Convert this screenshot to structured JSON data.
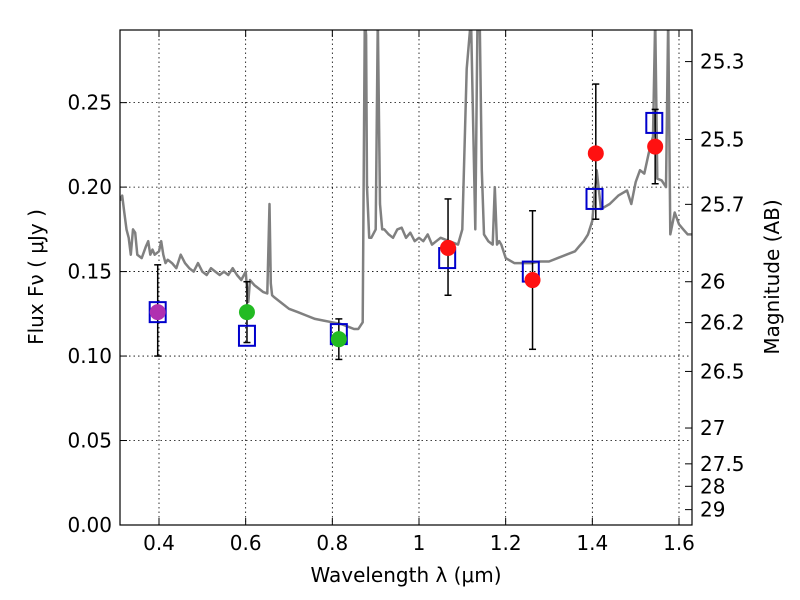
{
  "chart_data": {
    "type": "scatter",
    "title": "",
    "xlabel": "Wavelength  λ (μm)",
    "ylabel": "Flux  Fν  ( μJy )",
    "y2label": "Magnitude (AB)",
    "xlim": [
      0.31,
      1.63
    ],
    "ylim": [
      0.0,
      0.293
    ],
    "grid": true,
    "x_ticks": [
      0.4,
      0.6,
      0.8,
      1.0,
      1.2,
      1.4,
      1.6
    ],
    "x_tick_labels": [
      "0.4",
      "0.6",
      "0.8",
      "1",
      "1.2",
      "1.4",
      "1.6"
    ],
    "y_ticks": [
      0.0,
      0.05,
      0.1,
      0.15,
      0.2,
      0.25
    ],
    "y_tick_labels": [
      "0.00",
      "0.05",
      "0.10",
      "0.15",
      "0.20",
      "0.25"
    ],
    "y2_ticks": [
      {
        "label": "25.3",
        "flux": 0.2743
      },
      {
        "label": "25.5",
        "flux": 0.2282
      },
      {
        "label": "25.7",
        "flux": 0.1898
      },
      {
        "label": "26",
        "flux": 0.144
      },
      {
        "label": "26.2",
        "flux": 0.1198
      },
      {
        "label": "26.5",
        "flux": 0.0909
      },
      {
        "label": "27",
        "flux": 0.0574
      },
      {
        "label": "27.5",
        "flux": 0.0362
      },
      {
        "label": "28",
        "flux": 0.0229
      },
      {
        "label": "29",
        "flux": 0.0091
      }
    ],
    "observed_points": [
      {
        "x": 0.397,
        "y": 0.126,
        "yerr_low": 0.1,
        "yerr_high": 0.154,
        "color": "#b030b0"
      },
      {
        "x": 0.603,
        "y": 0.126,
        "yerr_low": 0.108,
        "yerr_high": 0.144,
        "color": "#22bb22"
      },
      {
        "x": 0.815,
        "y": 0.11,
        "yerr_low": 0.098,
        "yerr_high": 0.122,
        "color": "#22bb22"
      },
      {
        "x": 1.067,
        "y": 0.164,
        "yerr_low": 0.136,
        "yerr_high": 0.193,
        "color": "#ff1111"
      },
      {
        "x": 1.262,
        "y": 0.145,
        "yerr_low": 0.104,
        "yerr_high": 0.186,
        "color": "#ff1111"
      },
      {
        "x": 1.408,
        "y": 0.22,
        "yerr_low": 0.181,
        "yerr_high": 0.261,
        "color": "#ff1111"
      },
      {
        "x": 1.545,
        "y": 0.224,
        "yerr_low": 0.202,
        "yerr_high": 0.246,
        "color": "#ff1111"
      }
    ],
    "model_points": [
      {
        "x": 0.397,
        "y": 0.126
      },
      {
        "x": 0.603,
        "y": 0.112
      },
      {
        "x": 0.815,
        "y": 0.113
      },
      {
        "x": 1.065,
        "y": 0.158
      },
      {
        "x": 1.258,
        "y": 0.15
      },
      {
        "x": 1.405,
        "y": 0.193
      },
      {
        "x": 1.543,
        "y": 0.238
      }
    ],
    "model_spectrum": {
      "color": "#808080",
      "x": [
        0.31,
        0.315,
        0.32,
        0.325,
        0.33,
        0.335,
        0.34,
        0.345,
        0.35,
        0.36,
        0.37,
        0.375,
        0.38,
        0.385,
        0.39,
        0.4,
        0.405,
        0.41,
        0.415,
        0.42,
        0.43,
        0.44,
        0.45,
        0.46,
        0.47,
        0.48,
        0.49,
        0.5,
        0.51,
        0.52,
        0.53,
        0.54,
        0.55,
        0.56,
        0.57,
        0.58,
        0.59,
        0.6,
        0.603,
        0.606,
        0.61,
        0.62,
        0.63,
        0.64,
        0.65,
        0.655,
        0.658,
        0.661,
        0.665,
        0.67,
        0.68,
        0.7,
        0.72,
        0.74,
        0.76,
        0.78,
        0.8,
        0.82,
        0.84,
        0.85,
        0.86,
        0.87,
        0.875,
        0.878,
        0.88,
        0.885,
        0.89,
        0.9,
        0.905,
        0.91,
        0.915,
        0.92,
        0.93,
        0.94,
        0.95,
        0.96,
        0.97,
        0.98,
        0.99,
        1.0,
        1.01,
        1.02,
        1.03,
        1.04,
        1.05,
        1.07,
        1.09,
        1.1,
        1.11,
        1.12,
        1.13,
        1.135,
        1.14,
        1.145,
        1.15,
        1.16,
        1.17,
        1.175,
        1.18,
        1.185,
        1.19,
        1.2,
        1.22,
        1.24,
        1.26,
        1.28,
        1.3,
        1.32,
        1.34,
        1.36,
        1.37,
        1.38,
        1.39,
        1.4,
        1.41,
        1.42,
        1.44,
        1.46,
        1.48,
        1.49,
        1.5,
        1.51,
        1.52,
        1.53,
        1.54,
        1.545,
        1.55,
        1.56,
        1.57,
        1.575,
        1.58,
        1.59,
        1.6,
        1.61,
        1.62,
        1.63
      ],
      "y": [
        0.192,
        0.195,
        0.185,
        0.175,
        0.17,
        0.16,
        0.175,
        0.173,
        0.16,
        0.158,
        0.165,
        0.168,
        0.16,
        0.163,
        0.16,
        0.162,
        0.168,
        0.16,
        0.155,
        0.157,
        0.155,
        0.152,
        0.16,
        0.155,
        0.152,
        0.15,
        0.155,
        0.15,
        0.148,
        0.152,
        0.15,
        0.148,
        0.15,
        0.148,
        0.152,
        0.148,
        0.145,
        0.15,
        0.14,
        0.132,
        0.145,
        0.142,
        0.14,
        0.138,
        0.137,
        0.19,
        0.143,
        0.136,
        0.135,
        0.134,
        0.132,
        0.128,
        0.126,
        0.124,
        0.122,
        0.121,
        0.12,
        0.119,
        0.117,
        0.116,
        0.116,
        0.12,
        0.3,
        0.29,
        0.2,
        0.17,
        0.17,
        0.175,
        0.3,
        0.19,
        0.175,
        0.175,
        0.172,
        0.17,
        0.175,
        0.176,
        0.17,
        0.173,
        0.168,
        0.17,
        0.168,
        0.172,
        0.166,
        0.168,
        0.17,
        0.168,
        0.166,
        0.175,
        0.27,
        0.3,
        0.175,
        0.3,
        0.3,
        0.21,
        0.172,
        0.168,
        0.166,
        0.2,
        0.166,
        0.168,
        0.166,
        0.158,
        0.155,
        0.155,
        0.155,
        0.156,
        0.156,
        0.158,
        0.16,
        0.162,
        0.165,
        0.168,
        0.172,
        0.18,
        0.21,
        0.187,
        0.19,
        0.195,
        0.198,
        0.19,
        0.203,
        0.21,
        0.208,
        0.22,
        0.23,
        0.3,
        0.205,
        0.204,
        0.2,
        0.3,
        0.172,
        0.185,
        0.178,
        0.175,
        0.172,
        0.172
      ]
    }
  }
}
